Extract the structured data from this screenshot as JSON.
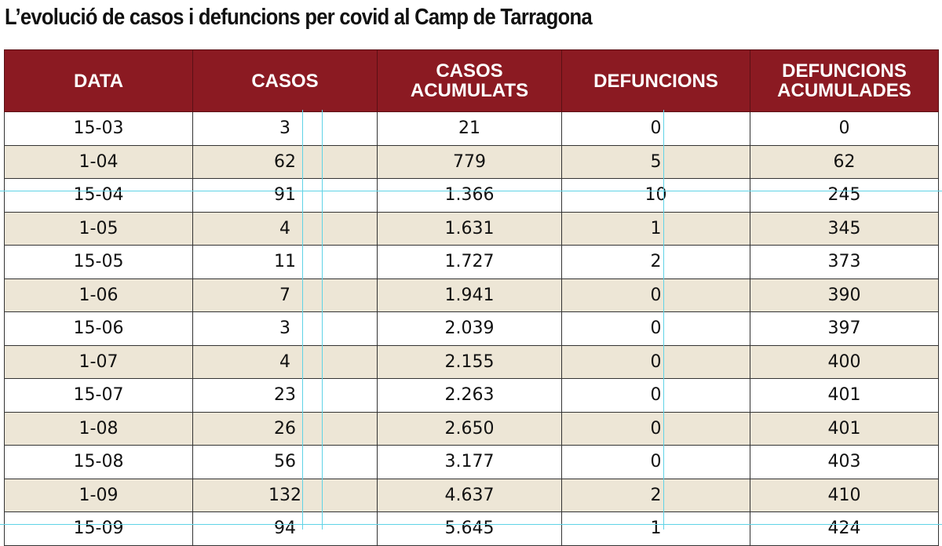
{
  "title": "L’evolució de casos i defuncions per covid al Camp de Tarragona",
  "table": {
    "header": [
      "DATA",
      "CASOS",
      "CASOS ACUMULATS",
      "DEFUNCIONS",
      "DEFUNCIONS ACUMULADES"
    ],
    "rows": [
      [
        "15-03",
        "3",
        "21",
        "0",
        "0"
      ],
      [
        "1-04",
        "62",
        "779",
        "5",
        "62"
      ],
      [
        "15-04",
        "91",
        "1.366",
        "10",
        "245"
      ],
      [
        "1-05",
        "4",
        "1.631",
        "1",
        "345"
      ],
      [
        "15-05",
        "11",
        "1.727",
        "2",
        "373"
      ],
      [
        "1-06",
        "7",
        "1.941",
        "0",
        "390"
      ],
      [
        "15-06",
        "3",
        "2.039",
        "0",
        "397"
      ],
      [
        "1-07",
        "4",
        "2.155",
        "0",
        "400"
      ],
      [
        "15-07",
        "23",
        "2.263",
        "0",
        "401"
      ],
      [
        "1-08",
        "26",
        "2.650",
        "0",
        "401"
      ],
      [
        "15-08",
        "56",
        "3.177",
        "0",
        "403"
      ],
      [
        "1-09",
        "132",
        "4.637",
        "2",
        "410"
      ],
      [
        "15-09",
        "94",
        "5.645",
        "1",
        "424"
      ]
    ]
  }
}
